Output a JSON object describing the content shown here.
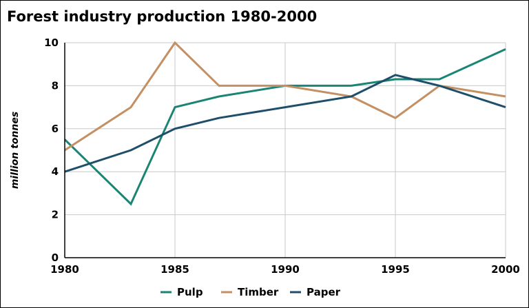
{
  "chart_data": {
    "type": "line",
    "title": "Forest industry production 1980-2000",
    "xlabel": "",
    "ylabel": "million tonnes",
    "xlim": [
      1980,
      2000
    ],
    "ylim": [
      0,
      10
    ],
    "xticks": [
      1980,
      1985,
      1990,
      1995,
      2000
    ],
    "yticks": [
      0,
      2,
      4,
      6,
      8,
      10
    ],
    "grid": true,
    "legend_position": "bottom",
    "series": [
      {
        "name": "Pulp",
        "color": "#1b8575",
        "x": [
          1980,
          1983,
          1985,
          1987,
          1990,
          1993,
          1995,
          1997,
          2000
        ],
        "y": [
          5.5,
          2.5,
          7,
          7.5,
          8,
          8,
          8.3,
          8.3,
          9.7
        ]
      },
      {
        "name": "Timber",
        "color": "#c48f62",
        "x": [
          1980,
          1983,
          1985,
          1987,
          1990,
          1993,
          1995,
          1997,
          2000
        ],
        "y": [
          5,
          7,
          10,
          8,
          8,
          7.5,
          6.5,
          8,
          7.5
        ]
      },
      {
        "name": "Paper",
        "color": "#1f4e6b",
        "x": [
          1980,
          1983,
          1985,
          1987,
          1990,
          1993,
          1995,
          1997,
          2000
        ],
        "y": [
          4,
          5,
          6,
          6.5,
          7,
          7.5,
          8.5,
          8,
          7
        ]
      }
    ]
  }
}
